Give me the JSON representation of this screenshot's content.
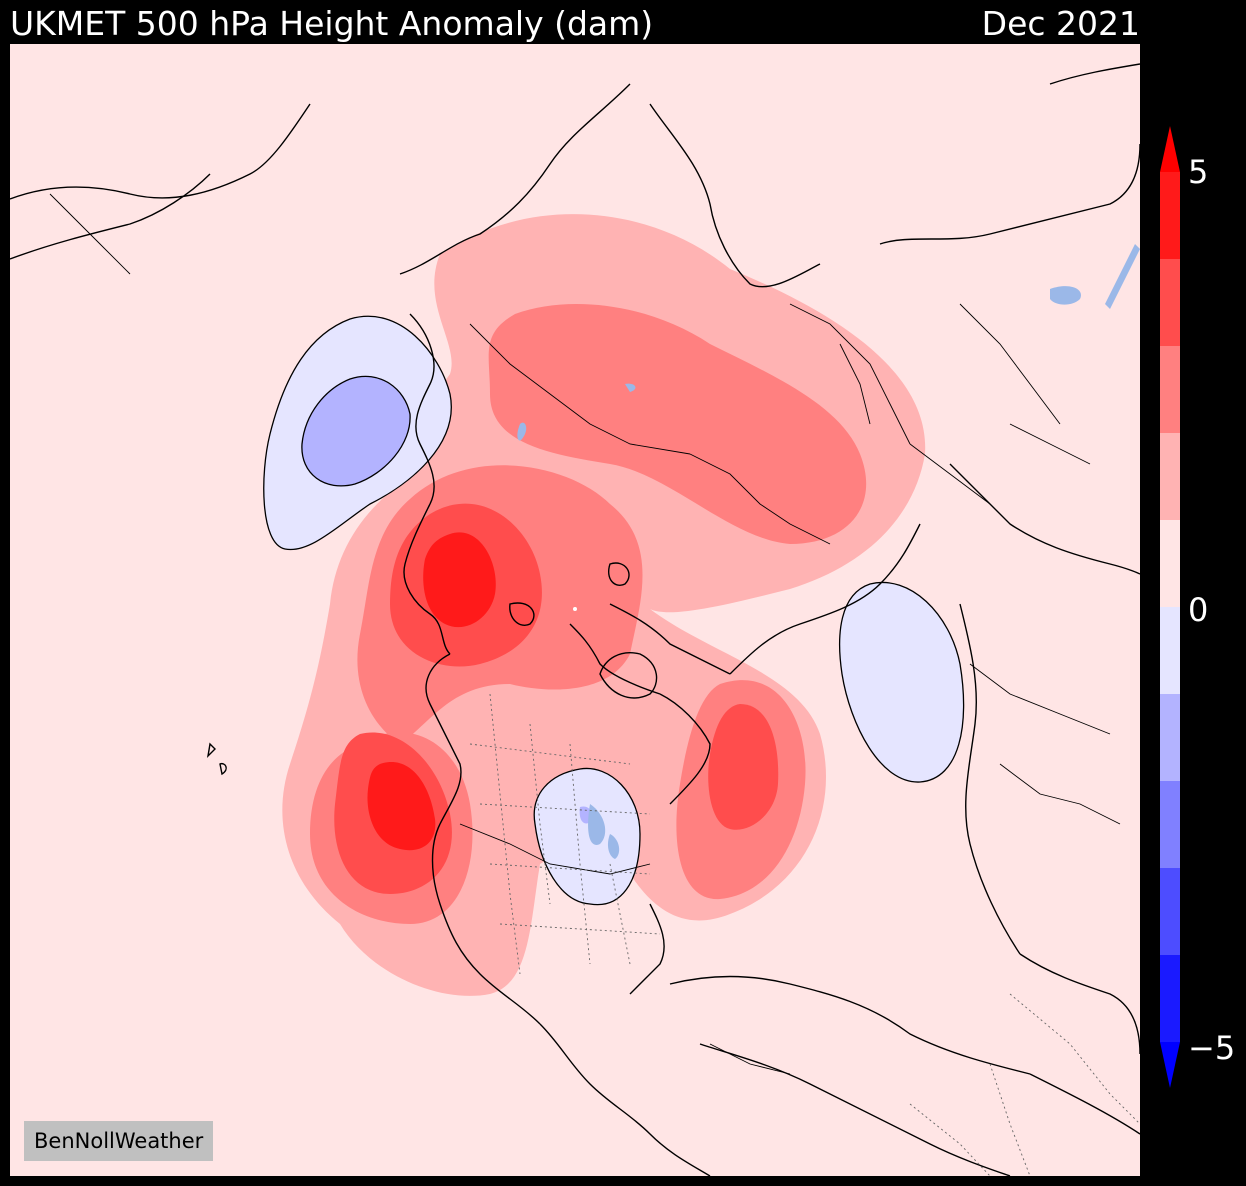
{
  "title": "UKMET 500 hPa Height Anomaly (dam)",
  "period": "Dec 2021",
  "credit": "BenNollWeather",
  "colorbar": {
    "tick_max": "5",
    "tick_zero": "0",
    "tick_min": "−5",
    "levels": [
      {
        "range": "4 to 5",
        "color": "#ff1a1a"
      },
      {
        "range": "3 to 4",
        "color": "#ff4d4d"
      },
      {
        "range": "2 to 3",
        "color": "#ff8080"
      },
      {
        "range": "1 to 2",
        "color": "#ffb3b3"
      },
      {
        "range": "0 to 1",
        "color": "#ffe5e5"
      },
      {
        "range": "-1 to 0",
        "color": "#e5e5ff"
      },
      {
        "range": "-2 to -1",
        "color": "#b3b3ff"
      },
      {
        "range": "-3 to -2",
        "color": "#8080ff"
      },
      {
        "range": "-4 to -3",
        "color": "#4d4dff"
      },
      {
        "range": "-5 to -4",
        "color": "#1a1aff"
      }
    ],
    "extend_max_color": "#ff0000",
    "extend_min_color": "#0000ff"
  },
  "colors": {
    "lakes": "#9bb8e8",
    "coastline": "#000000",
    "background": "#000000"
  }
}
